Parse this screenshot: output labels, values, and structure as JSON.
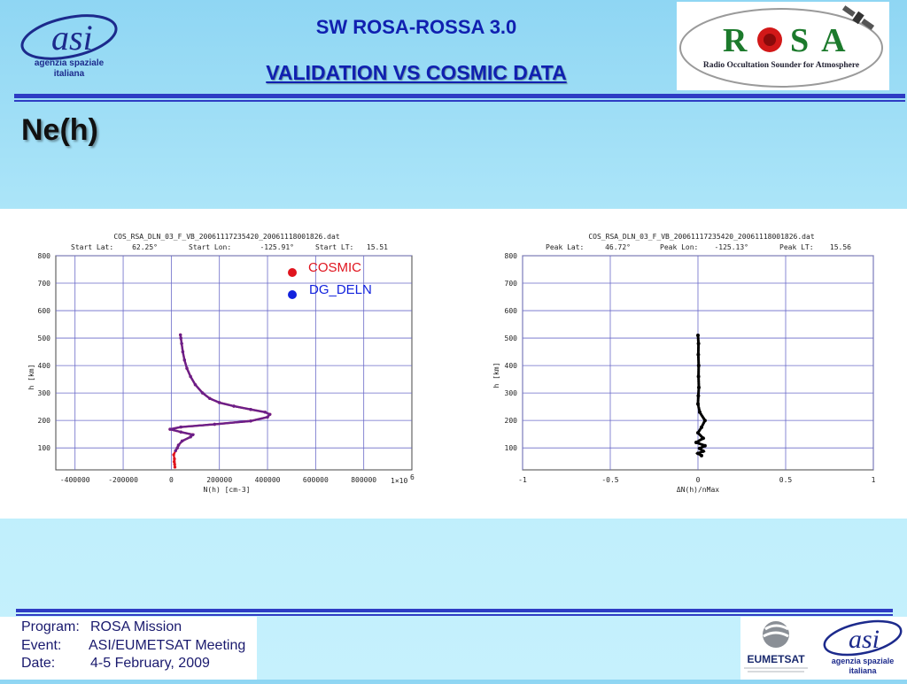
{
  "header": {
    "title_line1": "SW ROSA-ROSSA 3.0",
    "title_line2": "VALIDATION VS COSMIC DATA",
    "asi_logo": {
      "brand": "asi",
      "text_line1": "agenzia spaziale",
      "text_line2": "italiana"
    },
    "rosa_logo": {
      "brand": "ROSA",
      "subtitle": "Radio Occultation Sounder for Atmosphere"
    }
  },
  "section_title": "Ne(h)",
  "colors": {
    "title_blue": "#1020b0",
    "rule_blue": "#2e3cc4",
    "cosmic_red": "#e0141e",
    "dgdeln_blue": "#1222dd",
    "overlap_purple": "#6a1f8a"
  },
  "chart_data": [
    {
      "type": "scatter",
      "title": "COS_RSA_DLN_03_F_VB_20061117235420_20061118001826.dat",
      "subtitle": {
        "k1": "Start Lat:",
        "v1": "62.25°",
        "k2": "Start Lon:",
        "v2": "-125.91°",
        "k3": "Start LT:",
        "v3": "15.51"
      },
      "xlabel": "N(h) [cm-3]",
      "ylabel": "h [km]",
      "x_multiplier_label": "1×10",
      "x_multiplier_exp": "6",
      "xlim": [
        -480000,
        1000000
      ],
      "ylim": [
        20,
        800
      ],
      "x_ticks": [
        -400000,
        -200000,
        0,
        200000,
        400000,
        600000,
        800000
      ],
      "x_tick_labels": [
        "-400000",
        "-200000",
        "0",
        "200000",
        "400000",
        "600000",
        "800000"
      ],
      "y_ticks": [
        100,
        200,
        300,
        400,
        500,
        600,
        700,
        800
      ],
      "y_tick_labels": [
        "100",
        "200",
        "300",
        "400",
        "500",
        "600",
        "700",
        "800"
      ],
      "grid": true,
      "legend": [
        {
          "name": "COSMIC",
          "color": "#e0141e"
        },
        {
          "name": "DG_DELN",
          "color": "#1222dd"
        }
      ],
      "series": [
        {
          "name": "COSMIC",
          "color": "#e0141e",
          "points": [
            [
              12000,
              50
            ],
            [
              14000,
              40
            ],
            [
              15000,
              30
            ],
            [
              13000,
              60
            ],
            [
              10000,
              75
            ],
            [
              18000,
              90
            ],
            [
              25000,
              100
            ],
            [
              30000,
              110
            ],
            [
              45000,
              125
            ],
            [
              80000,
              140
            ],
            [
              90000,
              148
            ],
            [
              40000,
              158
            ],
            [
              -5000,
              168
            ],
            [
              40000,
              176
            ],
            [
              180000,
              186
            ],
            [
              330000,
              198
            ],
            [
              400000,
              212
            ],
            [
              410000,
              222
            ],
            [
              390000,
              230
            ],
            [
              330000,
              240
            ],
            [
              260000,
              252
            ],
            [
              200000,
              265
            ],
            [
              160000,
              280
            ],
            [
              130000,
              300
            ],
            [
              100000,
              330
            ],
            [
              80000,
              360
            ],
            [
              65000,
              390
            ],
            [
              55000,
              420
            ],
            [
              48000,
              450
            ],
            [
              43000,
              480
            ],
            [
              40000,
              500
            ],
            [
              38000,
              512
            ]
          ]
        },
        {
          "name": "DG_DELN",
          "color": "#1222dd",
          "points": [
            [
              18000,
              90
            ],
            [
              25000,
              100
            ],
            [
              30000,
              110
            ],
            [
              45000,
              125
            ],
            [
              80000,
              140
            ],
            [
              90000,
              148
            ],
            [
              40000,
              158
            ],
            [
              -5000,
              168
            ],
            [
              40000,
              176
            ],
            [
              180000,
              186
            ],
            [
              330000,
              198
            ],
            [
              400000,
              212
            ],
            [
              410000,
              222
            ],
            [
              390000,
              230
            ],
            [
              330000,
              240
            ],
            [
              260000,
              252
            ],
            [
              200000,
              265
            ],
            [
              160000,
              280
            ],
            [
              130000,
              300
            ],
            [
              100000,
              330
            ],
            [
              80000,
              360
            ],
            [
              65000,
              390
            ],
            [
              55000,
              420
            ],
            [
              48000,
              450
            ],
            [
              43000,
              480
            ],
            [
              40000,
              500
            ],
            [
              38000,
              512
            ]
          ]
        }
      ]
    },
    {
      "type": "scatter",
      "title": "COS_RSA_DLN_03_F_VB_20061117235420_20061118001826.dat",
      "subtitle": {
        "k1": "Peak Lat:",
        "v1": "46.72°",
        "k2": "Peak Lon:",
        "v2": "-125.13°",
        "k3": "Peak LT:",
        "v3": "15.56"
      },
      "xlabel": "ΔN(h)/nMax",
      "ylabel": "h [km]",
      "xlim": [
        -1,
        1
      ],
      "ylim": [
        20,
        800
      ],
      "x_ticks": [
        -1,
        -0.5,
        0,
        0.5,
        1
      ],
      "x_tick_labels": [
        "-1",
        "-0.5",
        "0",
        "0.5",
        "1"
      ],
      "y_ticks": [
        100,
        200,
        300,
        400,
        500,
        600,
        700,
        800
      ],
      "y_tick_labels": [
        "100",
        "200",
        "300",
        "400",
        "500",
        "600",
        "700",
        "800"
      ],
      "grid": true,
      "series": [
        {
          "name": "",
          "color": "#000000",
          "points": [
            [
              0,
              510
            ],
            [
              0.003,
              480
            ],
            [
              0.002,
              440
            ],
            [
              0.004,
              400
            ],
            [
              0.003,
              360
            ],
            [
              0.005,
              320
            ],
            [
              0.002,
              290
            ],
            [
              0,
              260
            ],
            [
              0.01,
              230
            ],
            [
              0.04,
              200
            ],
            [
              0.02,
              175
            ],
            [
              0,
              155
            ],
            [
              0.03,
              135
            ],
            [
              -0.01,
              120
            ],
            [
              0.04,
              108
            ],
            [
              0.01,
              98
            ],
            [
              0.03,
              88
            ],
            [
              0,
              80
            ],
            [
              0.02,
              72
            ]
          ]
        }
      ]
    }
  ],
  "footer": {
    "program_key": "Program:",
    "program_val": "ROSA Mission",
    "event_key": "Event:",
    "event_val": "ASI/EUMETSAT Meeting",
    "date_key": "Date:",
    "date_val": "4-5 February, 2009",
    "eumetsat_label": "EUMETSAT",
    "asi_logo": {
      "brand": "asi",
      "text_line1": "agenzia spaziale",
      "text_line2": "italiana"
    }
  }
}
